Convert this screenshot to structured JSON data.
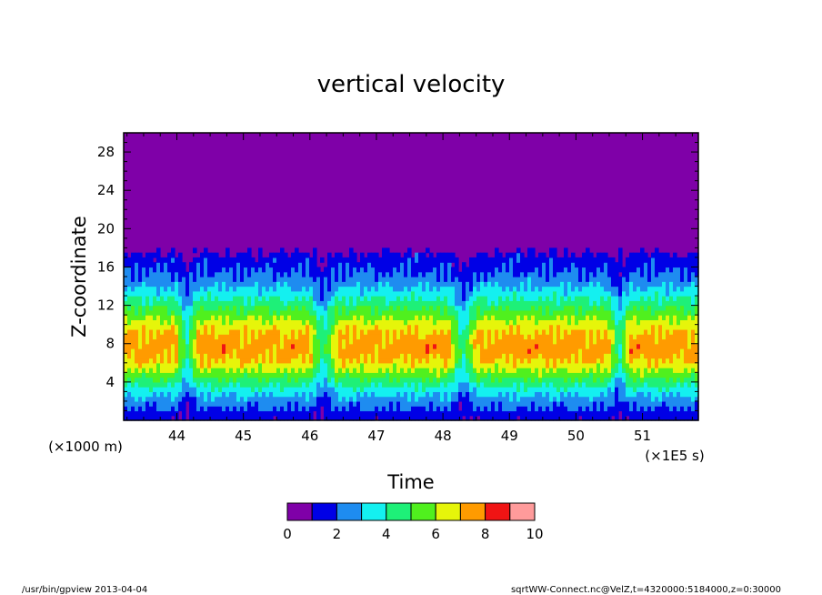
{
  "chart_data": {
    "type": "heatmap",
    "title": "vertical velocity",
    "xlabel": "Time",
    "ylabel": "Z-coordinate",
    "x_unit_label": "(×1E5 s)",
    "y_unit_label": "(×1000 m)",
    "x_range": [
      43.2,
      51.84
    ],
    "y_range": [
      0,
      30
    ],
    "x_ticks": [
      "44",
      "45",
      "46",
      "47",
      "48",
      "49",
      "50",
      "51"
    ],
    "y_ticks": [
      "4",
      "8",
      "12",
      "16",
      "20",
      "24",
      "28"
    ],
    "colorbar": {
      "levels": [
        0,
        1,
        2,
        3,
        4,
        5,
        6,
        7,
        8,
        9,
        10
      ],
      "tick_labels": [
        "0",
        "2",
        "4",
        "6",
        "8",
        "10"
      ],
      "colors": [
        "#7f00a8",
        "#0000e6",
        "#1e8cf0",
        "#14f0f0",
        "#1ef078",
        "#50f01e",
        "#e6f50a",
        "#ff9b00",
        "#f01414",
        "#ff9b9b"
      ]
    },
    "features": {
      "background_value": 0.5,
      "active_layer_top_z": 17.5,
      "max_region_value": 7.5,
      "quiet_intervals_x": [
        [
          44.1,
          44.2
        ],
        [
          46.1,
          46.3
        ],
        [
          48.2,
          48.4
        ],
        [
          50.6,
          50.7
        ]
      ]
    }
  },
  "footer": {
    "left": "/usr/bin/gpview  2013-04-04",
    "right": "sqrtWW-Connect.nc@VelZ,t=4320000:5184000,z=0:30000"
  }
}
